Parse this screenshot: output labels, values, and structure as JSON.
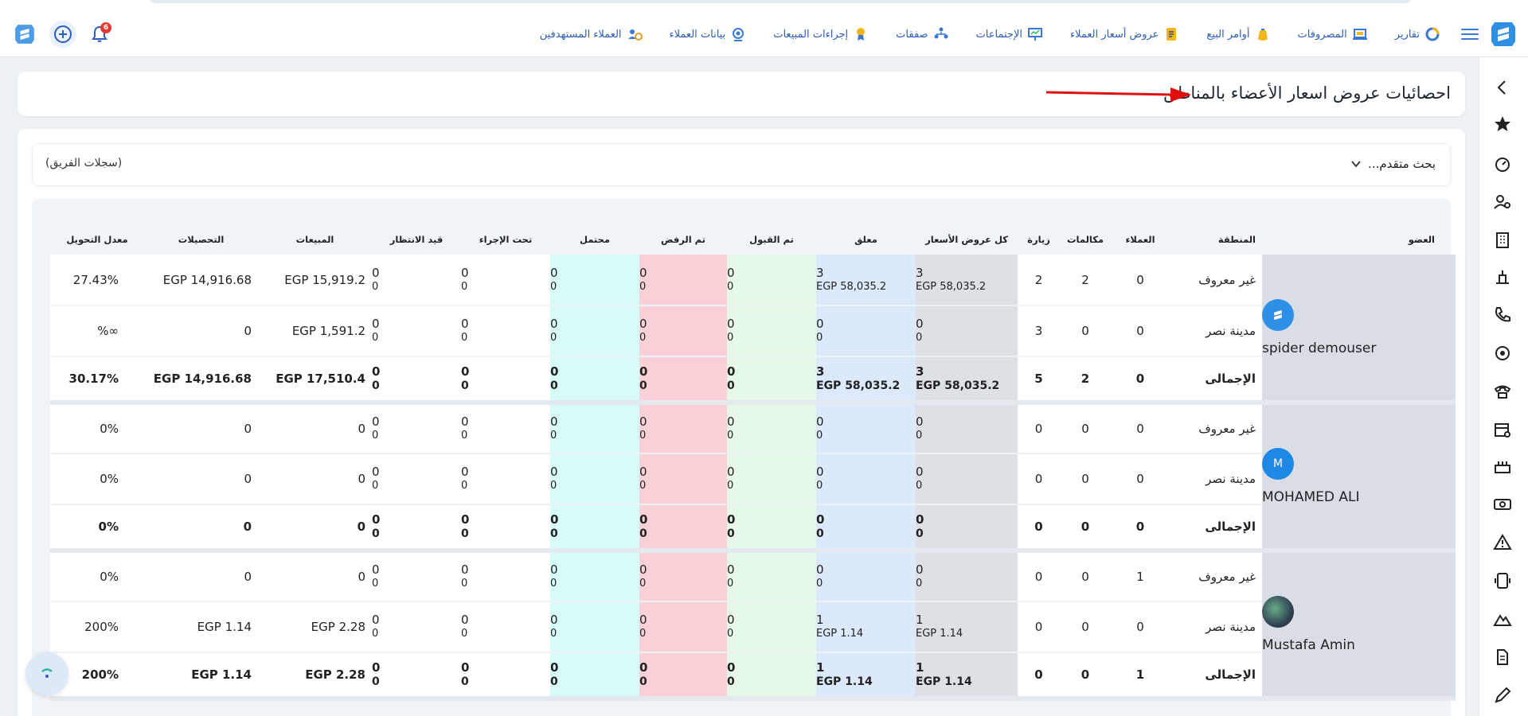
{
  "topbar": {
    "menu": [
      {
        "label": "العملاء المستهدفين",
        "icon": "target-users-icon"
      },
      {
        "label": "بيانات العملاء",
        "icon": "client-data-icon"
      },
      {
        "label": "إجراءات المبيعات",
        "icon": "sales-actions-icon"
      },
      {
        "label": "صفقات",
        "icon": "deals-icon"
      },
      {
        "label": "الإجتماعات",
        "icon": "meetings-icon"
      },
      {
        "label": "عروض أسعار العملاء",
        "icon": "quotes-icon"
      },
      {
        "label": "أوامر البيع",
        "icon": "sales-orders-icon"
      },
      {
        "label": "المصروفات",
        "icon": "expenses-icon"
      },
      {
        "label": "تقارير",
        "icon": "reports-icon"
      }
    ],
    "notification_count": "6"
  },
  "page": {
    "title": "احصائيات عروض اسعار الأعضاء بالمناطق",
    "advanced_search": "بحث متقدم...",
    "team_records": "(سجلات الفريق)"
  },
  "table": {
    "headers": {
      "member": "العضو",
      "region": "المنطقة",
      "clients": "العملاء",
      "calls": "مكالمات",
      "visits": "زيارة",
      "all_quotes": "كل عروض الأسعار",
      "pending": "معلق",
      "accepted": "تم القبول",
      "rejected": "تم الرفض",
      "potential": "محتمل",
      "in_progress": "تحت الإجراء",
      "waiting": "قيد الانتظار",
      "sales": "المبيعات",
      "collections": "التحصيلات",
      "conversion": "معدل التحويل"
    },
    "groups": [
      {
        "member_name": "spider demouser",
        "avatar": "logo",
        "rows": [
          {
            "region": "غير معروف",
            "clients": "0",
            "calls": "2",
            "visits": "2",
            "all_a": "3",
            "all_b": "EGP 58,035.2",
            "pend_a": "3",
            "pend_b": "EGP 58,035.2",
            "acc_a": "0",
            "acc_b": "0",
            "rej_a": "0",
            "rej_b": "0",
            "pot_a": "0",
            "pot_b": "0",
            "prog_a": "0",
            "prog_b": "0",
            "wait_a": "0",
            "wait_b": "0",
            "sales": "EGP 15,919.2",
            "coll": "EGP 14,916.68",
            "conv": "27.43%"
          },
          {
            "region": "مدينة نصر",
            "clients": "0",
            "calls": "0",
            "visits": "3",
            "all_a": "0",
            "all_b": "0",
            "pend_a": "0",
            "pend_b": "0",
            "acc_a": "0",
            "acc_b": "0",
            "rej_a": "0",
            "rej_b": "0",
            "pot_a": "0",
            "pot_b": "0",
            "prog_a": "0",
            "prog_b": "0",
            "wait_a": "0",
            "wait_b": "0",
            "sales": "EGP 1,591.2",
            "coll": "0",
            "conv": "%∞"
          },
          {
            "region": "الإجمالى",
            "clients": "0",
            "calls": "2",
            "visits": "5",
            "all_a": "3",
            "all_b": "EGP 58,035.2",
            "pend_a": "3",
            "pend_b": "EGP 58,035.2",
            "acc_a": "0",
            "acc_b": "0",
            "rej_a": "0",
            "rej_b": "0",
            "pot_a": "0",
            "pot_b": "0",
            "prog_a": "0",
            "prog_b": "0",
            "wait_a": "0",
            "wait_b": "0",
            "sales": "EGP 17,510.4",
            "coll": "EGP 14,916.68",
            "conv": "30.17%"
          }
        ]
      },
      {
        "member_name": "MOHAMED ALI",
        "avatar": "M",
        "rows": [
          {
            "region": "غير معروف",
            "clients": "0",
            "calls": "0",
            "visits": "0",
            "all_a": "0",
            "all_b": "0",
            "pend_a": "0",
            "pend_b": "0",
            "acc_a": "0",
            "acc_b": "0",
            "rej_a": "0",
            "rej_b": "0",
            "pot_a": "0",
            "pot_b": "0",
            "prog_a": "0",
            "prog_b": "0",
            "wait_a": "0",
            "wait_b": "0",
            "sales": "0",
            "coll": "0",
            "conv": "0%"
          },
          {
            "region": "مدينة نصر",
            "clients": "0",
            "calls": "0",
            "visits": "0",
            "all_a": "0",
            "all_b": "0",
            "pend_a": "0",
            "pend_b": "0",
            "acc_a": "0",
            "acc_b": "0",
            "rej_a": "0",
            "rej_b": "0",
            "pot_a": "0",
            "pot_b": "0",
            "prog_a": "0",
            "prog_b": "0",
            "wait_a": "0",
            "wait_b": "0",
            "sales": "0",
            "coll": "0",
            "conv": "0%"
          },
          {
            "region": "الإجمالى",
            "clients": "0",
            "calls": "0",
            "visits": "0",
            "all_a": "0",
            "all_b": "0",
            "pend_a": "0",
            "pend_b": "0",
            "acc_a": "0",
            "acc_b": "0",
            "rej_a": "0",
            "rej_b": "0",
            "pot_a": "0",
            "pot_b": "0",
            "prog_a": "0",
            "prog_b": "0",
            "wait_a": "0",
            "wait_b": "0",
            "sales": "0",
            "coll": "0",
            "conv": "0%"
          }
        ]
      },
      {
        "member_name": "Mustafa Amin",
        "avatar": "photo",
        "rows": [
          {
            "region": "غير معروف",
            "clients": "1",
            "calls": "0",
            "visits": "0",
            "all_a": "0",
            "all_b": "0",
            "pend_a": "0",
            "pend_b": "0",
            "acc_a": "0",
            "acc_b": "0",
            "rej_a": "0",
            "rej_b": "0",
            "pot_a": "0",
            "pot_b": "0",
            "prog_a": "0",
            "prog_b": "0",
            "wait_a": "0",
            "wait_b": "0",
            "sales": "0",
            "coll": "0",
            "conv": "0%"
          },
          {
            "region": "مدينة نصر",
            "clients": "0",
            "calls": "0",
            "visits": "0",
            "all_a": "1",
            "all_b": "EGP 1.14",
            "pend_a": "1",
            "pend_b": "EGP 1.14",
            "acc_a": "0",
            "acc_b": "0",
            "rej_a": "0",
            "rej_b": "0",
            "pot_a": "0",
            "pot_b": "0",
            "prog_a": "0",
            "prog_b": "0",
            "wait_a": "0",
            "wait_b": "0",
            "sales": "EGP 2.28",
            "coll": "EGP 1.14",
            "conv": "200%"
          },
          {
            "region": "الإجمالى",
            "clients": "1",
            "calls": "0",
            "visits": "0",
            "all_a": "1",
            "all_b": "EGP 1.14",
            "pend_a": "1",
            "pend_b": "EGP 1.14",
            "acc_a": "0",
            "acc_b": "0",
            "rej_a": "0",
            "rej_b": "0",
            "pot_a": "0",
            "pot_b": "0",
            "prog_a": "0",
            "prog_b": "0",
            "wait_a": "0",
            "wait_b": "0",
            "sales": "EGP 2.28",
            "coll": "EGP 1.14",
            "conv": "200%"
          }
        ]
      }
    ]
  },
  "sidebar": {
    "icons": [
      "collapse-arrow-icon",
      "star-icon",
      "dashboard-gauge-icon",
      "users-settings-icon",
      "building-icon",
      "podium-icon",
      "phone-icon",
      "target-icon",
      "telephone-icon",
      "calendar-icon",
      "cake-icon",
      "money-icon",
      "warning-icon",
      "device-icon",
      "mountain-icon",
      "document-icon",
      "pen-icon"
    ]
  },
  "colors": {
    "accent": "#2d5db8",
    "brand": "#2d8fe6",
    "all_quotes_bg": "#dde1e6",
    "pending_bg": "#dbe9fa",
    "accepted_bg": "#e6f8e8",
    "rejected_bg": "#fbd1d8",
    "potential_bg": "#d7fbf8"
  }
}
